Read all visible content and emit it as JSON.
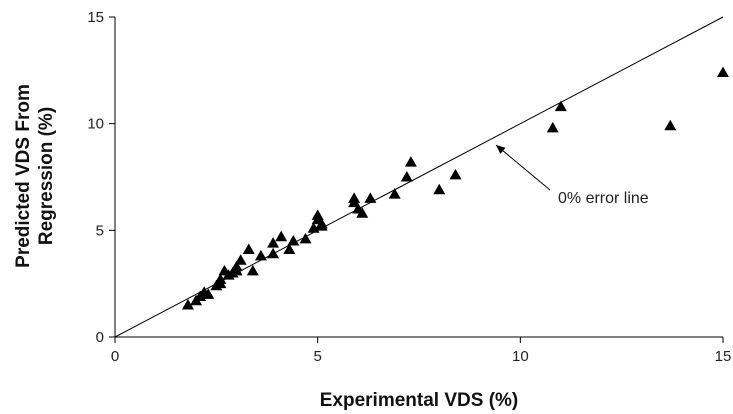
{
  "chart_data": {
    "type": "scatter",
    "title": "",
    "xlabel": "Experimental VDS (%)",
    "ylabel_lines": [
      "Predicted VDS  From",
      "Regression (%)"
    ],
    "xlim": [
      0,
      15
    ],
    "ylim": [
      0,
      15
    ],
    "x_ticks": [
      0,
      5,
      10,
      15
    ],
    "y_ticks": [
      0,
      5,
      10,
      15
    ],
    "grid": false,
    "legend": "none",
    "marker": "triangle",
    "marker_color": "#000000",
    "reference_line": {
      "name": "0% error line",
      "from": [
        0,
        0
      ],
      "to": [
        15,
        15
      ]
    },
    "annotation": {
      "text": "0% error line",
      "points_to": [
        9.4,
        9.0
      ]
    },
    "points": [
      [
        1.8,
        1.5
      ],
      [
        2.0,
        1.7
      ],
      [
        2.1,
        1.9
      ],
      [
        2.2,
        2.1
      ],
      [
        2.3,
        2.0
      ],
      [
        2.5,
        2.4
      ],
      [
        2.6,
        2.7
      ],
      [
        2.6,
        2.5
      ],
      [
        2.8,
        2.9
      ],
      [
        2.7,
        3.1
      ],
      [
        2.9,
        3.0
      ],
      [
        3.0,
        3.3
      ],
      [
        3.0,
        3.1
      ],
      [
        3.1,
        3.6
      ],
      [
        3.3,
        4.1
      ],
      [
        3.4,
        3.1
      ],
      [
        3.6,
        3.8
      ],
      [
        3.9,
        3.9
      ],
      [
        3.9,
        4.4
      ],
      [
        4.1,
        4.7
      ],
      [
        4.3,
        4.1
      ],
      [
        4.4,
        4.5
      ],
      [
        4.7,
        4.6
      ],
      [
        4.9,
        5.1
      ],
      [
        5.0,
        5.5
      ],
      [
        5.0,
        5.7
      ],
      [
        5.1,
        5.3
      ],
      [
        5.1,
        5.2
      ],
      [
        5.9,
        6.5
      ],
      [
        5.9,
        6.3
      ],
      [
        6.0,
        6.0
      ],
      [
        6.1,
        5.8
      ],
      [
        6.3,
        6.5
      ],
      [
        6.9,
        6.7
      ],
      [
        7.2,
        7.5
      ],
      [
        7.3,
        8.2
      ],
      [
        8.0,
        6.9
      ],
      [
        8.4,
        7.6
      ],
      [
        10.8,
        9.8
      ],
      [
        11.0,
        10.8
      ],
      [
        13.7,
        9.9
      ],
      [
        15.0,
        12.4
      ]
    ]
  }
}
